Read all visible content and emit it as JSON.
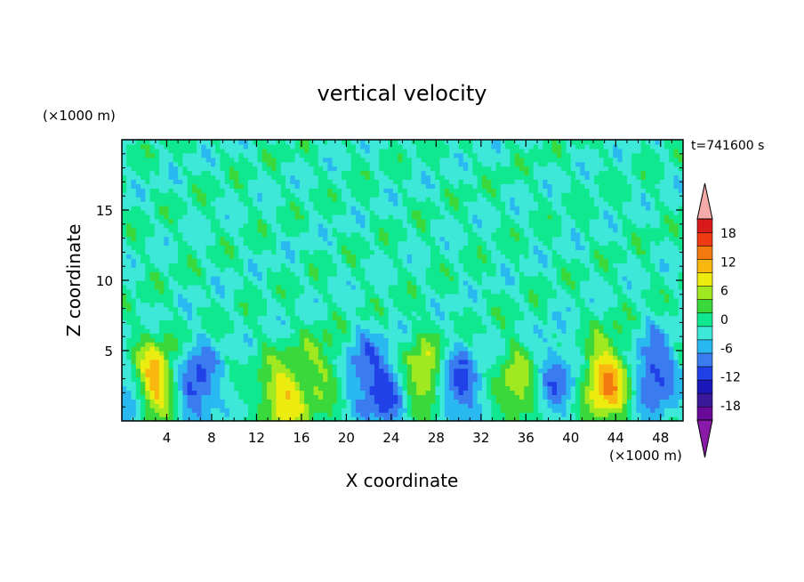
{
  "chart_data": {
    "type": "heatmap",
    "title": "vertical velocity",
    "xlabel": "X coordinate",
    "ylabel": "Z coordinate",
    "x_unit": "(×1000 m)",
    "y_unit": "(×1000 m)",
    "time_label": "t=741600 s",
    "xlim": [
      0,
      50
    ],
    "ylim": [
      0,
      20
    ],
    "x_ticks": [
      4,
      8,
      12,
      16,
      20,
      24,
      28,
      32,
      36,
      40,
      44,
      48
    ],
    "y_ticks": [
      5,
      10,
      15
    ],
    "colorbar": {
      "levels": [
        -21,
        -18,
        -15,
        -12,
        -9,
        -6,
        -3,
        0,
        3,
        6,
        9,
        12,
        15,
        18,
        21
      ],
      "tick_labels": [
        "18",
        "12",
        "6",
        "0",
        "-6",
        "-12",
        "-18"
      ],
      "tick_values": [
        18,
        12,
        6,
        0,
        -6,
        -12,
        -18
      ],
      "colors": [
        "#6a0a9a",
        "#3a1a9a",
        "#1a18b8",
        "#2040e8",
        "#3a7cf0",
        "#2ab8f0",
        "#3ee8d8",
        "#10e890",
        "#3ad83a",
        "#a0e820",
        "#ecec10",
        "#f8b810",
        "#f47a10",
        "#ee3a12",
        "#d81a1a"
      ],
      "extend_colors": {
        "low": "#8a1aa8",
        "high": "#f4aaa8"
      }
    },
    "features": [
      {
        "x": 2.8,
        "z": 2.6,
        "peak": 18
      },
      {
        "x": 6.5,
        "z": 2.6,
        "peak": -11
      },
      {
        "x": 1.0,
        "z": 1.5,
        "peak": -10
      },
      {
        "x": 14.5,
        "z": 1.6,
        "peak": 12
      },
      {
        "x": 18.5,
        "z": 3.6,
        "peak": 7
      },
      {
        "x": 21.0,
        "z": 3.6,
        "peak": -8
      },
      {
        "x": 23.8,
        "z": 2.0,
        "peak": -10
      },
      {
        "x": 26.8,
        "z": 3.0,
        "peak": 12
      },
      {
        "x": 29.8,
        "z": 2.5,
        "peak": -11
      },
      {
        "x": 35.5,
        "z": 2.5,
        "peak": 9
      },
      {
        "x": 38.5,
        "z": 3.0,
        "peak": -9
      },
      {
        "x": 43.3,
        "z": 2.8,
        "peak": 16
      },
      {
        "x": 47.3,
        "z": 3.3,
        "peak": -11
      }
    ]
  }
}
